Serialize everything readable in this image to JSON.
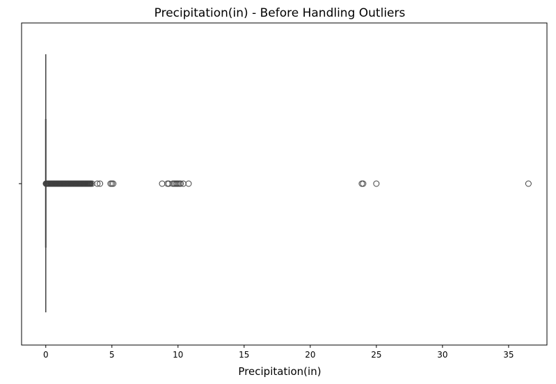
{
  "chart_data": {
    "type": "box",
    "title": "Precipitation(in) - Before Handling Outliers",
    "xlabel": "Precipitation(in)",
    "ylabel": "",
    "orientation": "horizontal",
    "xlim": [
      -1.83,
      37.9
    ],
    "xticks": [
      0,
      5,
      10,
      15,
      20,
      25,
      30,
      35
    ],
    "grid": false,
    "box": {
      "min": 0.0,
      "q1": 0.0,
      "median": 0.0,
      "q3": 0.0,
      "max": 0.0
    },
    "outliers_dense_range": [
      0.01,
      3.4
    ],
    "outliers": [
      3.5,
      3.9,
      4.1,
      4.9,
      5.0,
      5.1,
      8.8,
      9.2,
      9.3,
      9.6,
      9.7,
      9.8,
      9.9,
      10.0,
      10.1,
      10.2,
      10.4,
      10.8,
      23.9,
      24.0,
      25.0,
      36.5
    ],
    "colors": {
      "box_line": "#3f3f3f",
      "outlier_edge": "#3f3f3f",
      "axis": "#000000"
    }
  }
}
